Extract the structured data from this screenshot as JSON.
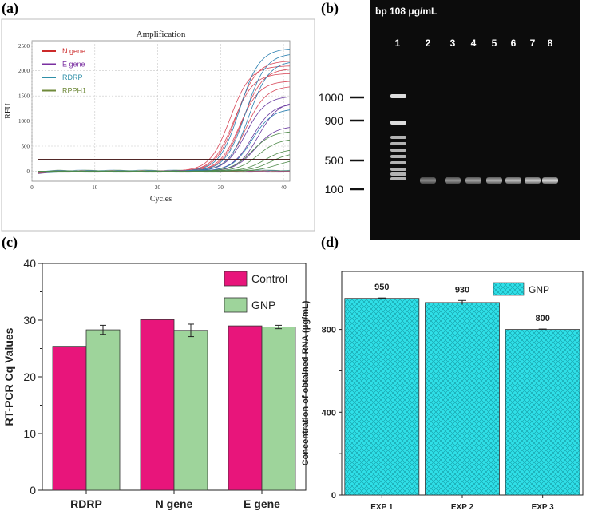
{
  "panels": {
    "a": "(a)",
    "b": "(b)",
    "c": "(c)",
    "d": "(d)"
  },
  "chart_data": [
    {
      "id": "a",
      "type": "line",
      "title": "Amplification",
      "xlabel": "Cycles",
      "ylabel": "RFU",
      "xlim": [
        0,
        41
      ],
      "ylim": [
        -200,
        2600
      ],
      "xticks": [
        0,
        10,
        20,
        30,
        40
      ],
      "yticks": [
        0,
        500,
        1000,
        1500,
        2000,
        2500
      ],
      "threshold": 230,
      "legend": [
        {
          "label": "N gene",
          "color": "#cc2a2a"
        },
        {
          "label": "E gene",
          "color": "#7a2fa0"
        },
        {
          "label": "RDRP",
          "color": "#2f8fa8"
        },
        {
          "label": "RPPH1",
          "color": "#6f8a3a"
        }
      ],
      "series": [
        {
          "name": "N gene",
          "color": "#d84a5a",
          "curves": [
            {
              "plateau": 2100,
              "mid": 31.5
            },
            {
              "plateau": 1950,
              "mid": 32
            },
            {
              "plateau": 2200,
              "mid": 32.5
            },
            {
              "plateau": 1800,
              "mid": 33
            },
            {
              "plateau": 2050,
              "mid": 33.5
            },
            {
              "plateau": 1700,
              "mid": 34
            }
          ]
        },
        {
          "name": "E gene",
          "color": "#6a3aa0",
          "curves": [
            {
              "plateau": 1500,
              "mid": 34
            },
            {
              "plateau": 1350,
              "mid": 35
            },
            {
              "plateau": 900,
              "mid": 35.5
            },
            {
              "plateau": 1400,
              "mid": 36
            }
          ]
        },
        {
          "name": "RDRP",
          "color": "#2a7fb0",
          "curves": [
            {
              "plateau": 2450,
              "mid": 33
            },
            {
              "plateau": 2350,
              "mid": 34
            },
            {
              "plateau": 2200,
              "mid": 34.5
            },
            {
              "plateau": 1250,
              "mid": 35
            }
          ]
        },
        {
          "name": "RPPH1",
          "color": "#4f8a4a",
          "curves": [
            {
              "plateau": 800,
              "mid": 35
            },
            {
              "plateau": 650,
              "mid": 36
            },
            {
              "plateau": 450,
              "mid": 37
            },
            {
              "plateau": 380,
              "mid": 38
            },
            {
              "plateau": 250,
              "mid": 39
            }
          ]
        }
      ]
    },
    {
      "id": "b",
      "type": "other",
      "title": "bp 108 μg/mL",
      "lane_labels": [
        "1",
        "2",
        "3",
        "4",
        "5",
        "6",
        "7",
        "8"
      ],
      "ladder_marks": [
        {
          "label": "1000",
          "bp": 1000
        },
        {
          "label": "900",
          "bp": 900
        },
        {
          "label": "500",
          "bp": 500
        },
        {
          "label": "100",
          "bp": 100
        }
      ]
    },
    {
      "id": "c",
      "type": "bar",
      "categories": [
        "RDRP",
        "N gene",
        "E gene"
      ],
      "ylabel": "RT-PCR Cq Values",
      "ylim": [
        0,
        40
      ],
      "yticks": [
        0,
        10,
        20,
        30,
        40
      ],
      "legend": [
        {
          "label": "Control",
          "color": "#e8157b"
        },
        {
          "label": "GNP",
          "color": "#9ed49b"
        }
      ],
      "series": [
        {
          "name": "Control",
          "color": "#e8157b",
          "values": [
            25.4,
            30.1,
            29.0
          ],
          "errors": [
            0,
            0,
            0
          ]
        },
        {
          "name": "GNP",
          "color": "#9ed49b",
          "values": [
            28.3,
            28.2,
            28.8
          ],
          "errors": [
            0.8,
            1.1,
            0.3
          ]
        }
      ]
    },
    {
      "id": "d",
      "type": "bar",
      "categories": [
        "EXP 1",
        "EXP 2",
        "EXP 3"
      ],
      "ylabel": "Concentration of obtained RNA (μg/mL)",
      "ylim": [
        0,
        1080
      ],
      "yticks": [
        0,
        400,
        800
      ],
      "legend": [
        {
          "label": "GNP",
          "color": "#2fe0e8"
        }
      ],
      "series": [
        {
          "name": "GNP",
          "color": "#2fe0e8",
          "values": [
            950,
            930,
            800
          ],
          "errors": [
            2,
            10,
            2
          ],
          "value_labels": [
            "950",
            "930",
            "800"
          ]
        }
      ]
    }
  ]
}
